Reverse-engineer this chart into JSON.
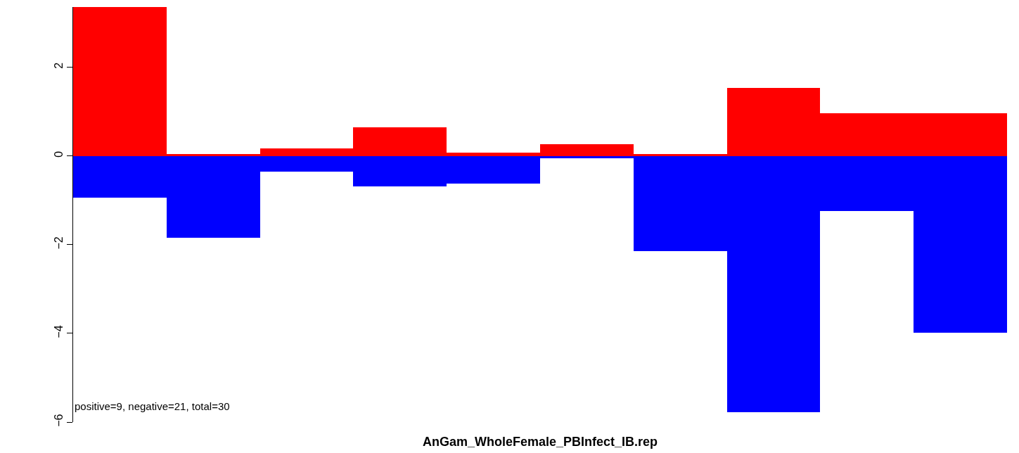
{
  "chart_data": {
    "type": "bar",
    "stacked": true,
    "title": "AnGam_WholeFemale_PBInfect_IB.rep",
    "categories": [
      null,
      null,
      null,
      null,
      null,
      null,
      null,
      null,
      null,
      null
    ],
    "series": [
      {
        "color": "#ff0000",
        "values": [
          3.36,
          0.05,
          0.17,
          0.64,
          0.07,
          0.26,
          0.04,
          1.53,
          0.96,
          0.96
        ]
      },
      {
        "color": "#0000ff",
        "values": [
          -0.94,
          -1.84,
          -0.35,
          -0.69,
          -0.62,
          -0.05,
          -2.14,
          -5.77,
          -1.24,
          -3.99
        ]
      }
    ],
    "ylim": [
      -6,
      3.36
    ],
    "yticks": [
      {
        "value": -6,
        "label": "−6"
      },
      {
        "value": -4,
        "label": "−4"
      },
      {
        "value": -2,
        "label": "−2"
      },
      0,
      2
    ],
    "tick_labels": "y",
    "annotations": [
      "positive=9, negative=21, total=30"
    ]
  }
}
